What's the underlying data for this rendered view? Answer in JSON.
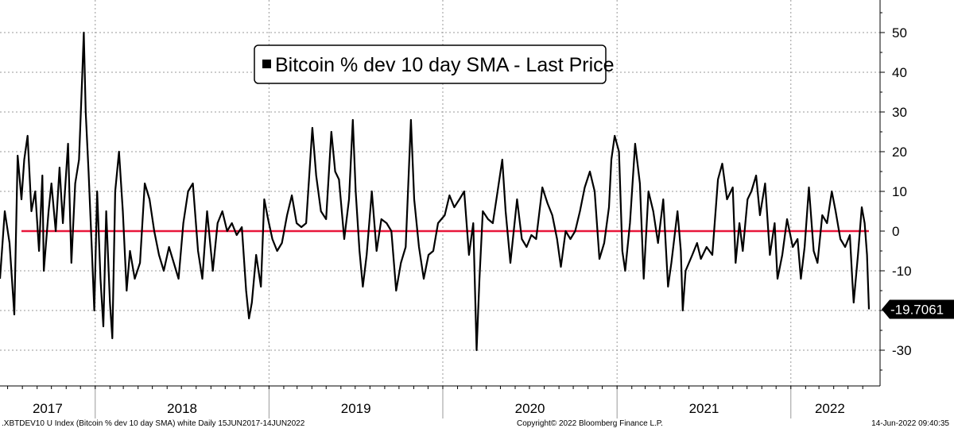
{
  "chart_data": {
    "type": "line",
    "title": "",
    "xlabel": "",
    "ylabel": "",
    "x_range": [
      "2017-06-15",
      "2022-06-14"
    ],
    "ylim": [
      -40,
      55
    ],
    "yticks": [
      50,
      40,
      30,
      20,
      10,
      0,
      -10,
      -20,
      -30
    ],
    "ytick_labels": [
      "50",
      "40",
      "30",
      "20",
      "10",
      "0",
      "-10",
      "",
      "-30"
    ],
    "xtick_labels": [
      "2017",
      "2018",
      "2019",
      "2020",
      "2021",
      "2022"
    ],
    "legend": {
      "entries": [
        "Bitcoin % dev 10 day SMA - Last Price"
      ],
      "placement": "top-center"
    },
    "last_value_label": "-19.7061",
    "reference_line": {
      "y": 0,
      "color": "#e8173a"
    },
    "grid": true,
    "series": [
      {
        "color": "#000000",
        "points": [
          [
            "2017-06-15",
            -12
          ],
          [
            "2017-06-25",
            5
          ],
          [
            "2017-07-05",
            -3
          ],
          [
            "2017-07-15",
            -21
          ],
          [
            "2017-07-22",
            19
          ],
          [
            "2017-07-30",
            8
          ],
          [
            "2017-08-05",
            18
          ],
          [
            "2017-08-12",
            24
          ],
          [
            "2017-08-20",
            5
          ],
          [
            "2017-08-28",
            10
          ],
          [
            "2017-09-05",
            -5
          ],
          [
            "2017-09-12",
            14
          ],
          [
            "2017-09-15",
            -10
          ],
          [
            "2017-09-25",
            5
          ],
          [
            "2017-10-01",
            12
          ],
          [
            "2017-10-10",
            0
          ],
          [
            "2017-10-18",
            16
          ],
          [
            "2017-10-25",
            2
          ],
          [
            "2017-11-05",
            22
          ],
          [
            "2017-11-12",
            -8
          ],
          [
            "2017-11-20",
            12
          ],
          [
            "2017-11-28",
            18
          ],
          [
            "2017-12-05",
            40
          ],
          [
            "2017-12-08",
            50
          ],
          [
            "2017-12-12",
            30
          ],
          [
            "2017-12-18",
            15
          ],
          [
            "2017-12-25",
            -5
          ],
          [
            "2017-12-30",
            -20
          ],
          [
            "2018-01-05",
            10
          ],
          [
            "2018-01-12",
            -12
          ],
          [
            "2018-01-18",
            -24
          ],
          [
            "2018-01-24",
            5
          ],
          [
            "2018-02-01",
            -18
          ],
          [
            "2018-02-06",
            -27
          ],
          [
            "2018-02-12",
            10
          ],
          [
            "2018-02-20",
            20
          ],
          [
            "2018-02-28",
            5
          ],
          [
            "2018-03-08",
            -15
          ],
          [
            "2018-03-15",
            -5
          ],
          [
            "2018-03-25",
            -12
          ],
          [
            "2018-04-05",
            -8
          ],
          [
            "2018-04-15",
            12
          ],
          [
            "2018-04-25",
            8
          ],
          [
            "2018-05-05",
            0
          ],
          [
            "2018-05-15",
            -6
          ],
          [
            "2018-05-25",
            -10
          ],
          [
            "2018-06-05",
            -4
          ],
          [
            "2018-06-15",
            -8
          ],
          [
            "2018-06-25",
            -12
          ],
          [
            "2018-07-05",
            2
          ],
          [
            "2018-07-15",
            10
          ],
          [
            "2018-07-25",
            12
          ],
          [
            "2018-08-05",
            -5
          ],
          [
            "2018-08-14",
            -12
          ],
          [
            "2018-08-24",
            5
          ],
          [
            "2018-09-05",
            -10
          ],
          [
            "2018-09-15",
            2
          ],
          [
            "2018-09-25",
            5
          ],
          [
            "2018-10-05",
            0
          ],
          [
            "2018-10-15",
            2
          ],
          [
            "2018-10-25",
            -1
          ],
          [
            "2018-11-05",
            1
          ],
          [
            "2018-11-14",
            -15
          ],
          [
            "2018-11-20",
            -22
          ],
          [
            "2018-11-26",
            -18
          ],
          [
            "2018-12-05",
            -6
          ],
          [
            "2018-12-15",
            -14
          ],
          [
            "2018-12-22",
            8
          ],
          [
            "2018-12-30",
            3
          ],
          [
            "2019-01-08",
            -2
          ],
          [
            "2019-01-18",
            -5
          ],
          [
            "2019-01-28",
            -3
          ],
          [
            "2019-02-08",
            4
          ],
          [
            "2019-02-18",
            9
          ],
          [
            "2019-02-28",
            2
          ],
          [
            "2019-03-10",
            1
          ],
          [
            "2019-03-20",
            2
          ],
          [
            "2019-04-02",
            26
          ],
          [
            "2019-04-10",
            14
          ],
          [
            "2019-04-20",
            5
          ],
          [
            "2019-05-01",
            3
          ],
          [
            "2019-05-12",
            25
          ],
          [
            "2019-05-20",
            15
          ],
          [
            "2019-05-28",
            13
          ],
          [
            "2019-06-08",
            -2
          ],
          [
            "2019-06-18",
            8
          ],
          [
            "2019-06-26",
            28
          ],
          [
            "2019-07-02",
            10
          ],
          [
            "2019-07-10",
            -5
          ],
          [
            "2019-07-17",
            -14
          ],
          [
            "2019-07-25",
            -6
          ],
          [
            "2019-08-05",
            10
          ],
          [
            "2019-08-15",
            -5
          ],
          [
            "2019-08-25",
            3
          ],
          [
            "2019-09-05",
            2
          ],
          [
            "2019-09-15",
            0
          ],
          [
            "2019-09-25",
            -15
          ],
          [
            "2019-10-05",
            -8
          ],
          [
            "2019-10-15",
            -4
          ],
          [
            "2019-10-26",
            28
          ],
          [
            "2019-11-02",
            8
          ],
          [
            "2019-11-12",
            -4
          ],
          [
            "2019-11-22",
            -12
          ],
          [
            "2019-12-02",
            -6
          ],
          [
            "2019-12-12",
            -5
          ],
          [
            "2019-12-22",
            2
          ],
          [
            "2020-01-05",
            4
          ],
          [
            "2020-01-15",
            9
          ],
          [
            "2020-01-25",
            6
          ],
          [
            "2020-02-05",
            8
          ],
          [
            "2020-02-15",
            10
          ],
          [
            "2020-02-25",
            -6
          ],
          [
            "2020-03-05",
            2
          ],
          [
            "2020-03-12",
            -30
          ],
          [
            "2020-03-18",
            -12
          ],
          [
            "2020-03-25",
            5
          ],
          [
            "2020-04-05",
            3
          ],
          [
            "2020-04-15",
            2
          ],
          [
            "2020-04-25",
            10
          ],
          [
            "2020-05-05",
            18
          ],
          [
            "2020-05-12",
            5
          ],
          [
            "2020-05-22",
            -8
          ],
          [
            "2020-06-05",
            8
          ],
          [
            "2020-06-15",
            -2
          ],
          [
            "2020-06-25",
            -4
          ],
          [
            "2020-07-05",
            -1
          ],
          [
            "2020-07-15",
            -2
          ],
          [
            "2020-07-28",
            11
          ],
          [
            "2020-08-08",
            7
          ],
          [
            "2020-08-18",
            4
          ],
          [
            "2020-08-28",
            -2
          ],
          [
            "2020-09-05",
            -9
          ],
          [
            "2020-09-15",
            0
          ],
          [
            "2020-09-25",
            -2
          ],
          [
            "2020-10-05",
            0
          ],
          [
            "2020-10-15",
            5
          ],
          [
            "2020-10-25",
            11
          ],
          [
            "2020-11-05",
            15
          ],
          [
            "2020-11-15",
            10
          ],
          [
            "2020-11-25",
            -7
          ],
          [
            "2020-12-05",
            -3
          ],
          [
            "2020-12-15",
            6
          ],
          [
            "2020-12-20",
            18
          ],
          [
            "2020-12-27",
            24
          ],
          [
            "2021-01-05",
            20
          ],
          [
            "2021-01-12",
            -5
          ],
          [
            "2021-01-18",
            -10
          ],
          [
            "2021-01-28",
            2
          ],
          [
            "2021-02-08",
            22
          ],
          [
            "2021-02-18",
            12
          ],
          [
            "2021-02-26",
            -12
          ],
          [
            "2021-03-08",
            10
          ],
          [
            "2021-03-18",
            5
          ],
          [
            "2021-03-28",
            -3
          ],
          [
            "2021-04-08",
            8
          ],
          [
            "2021-04-18",
            -14
          ],
          [
            "2021-04-25",
            -8
          ],
          [
            "2021-05-08",
            5
          ],
          [
            "2021-05-15",
            -5
          ],
          [
            "2021-05-19",
            -20
          ],
          [
            "2021-05-25",
            -10
          ],
          [
            "2021-06-08",
            -6
          ],
          [
            "2021-06-18",
            -3
          ],
          [
            "2021-06-26",
            -7
          ],
          [
            "2021-07-08",
            -4
          ],
          [
            "2021-07-20",
            -6
          ],
          [
            "2021-08-01",
            13
          ],
          [
            "2021-08-10",
            17
          ],
          [
            "2021-08-20",
            8
          ],
          [
            "2021-09-01",
            11
          ],
          [
            "2021-09-07",
            -8
          ],
          [
            "2021-09-15",
            2
          ],
          [
            "2021-09-22",
            -5
          ],
          [
            "2021-10-02",
            8
          ],
          [
            "2021-10-10",
            10
          ],
          [
            "2021-10-20",
            14
          ],
          [
            "2021-10-28",
            4
          ],
          [
            "2021-11-08",
            12
          ],
          [
            "2021-11-18",
            -6
          ],
          [
            "2021-11-28",
            2
          ],
          [
            "2021-12-04",
            -12
          ],
          [
            "2021-12-14",
            -6
          ],
          [
            "2021-12-24",
            3
          ],
          [
            "2022-01-05",
            -4
          ],
          [
            "2022-01-15",
            -2
          ],
          [
            "2022-01-22",
            -12
          ],
          [
            "2022-01-30",
            -4
          ],
          [
            "2022-02-08",
            11
          ],
          [
            "2022-02-18",
            -5
          ],
          [
            "2022-02-26",
            -8
          ],
          [
            "2022-03-08",
            4
          ],
          [
            "2022-03-18",
            2
          ],
          [
            "2022-03-28",
            10
          ],
          [
            "2022-04-05",
            5
          ],
          [
            "2022-04-15",
            -2
          ],
          [
            "2022-04-25",
            -4
          ],
          [
            "2022-05-05",
            -1
          ],
          [
            "2022-05-10",
            -12
          ],
          [
            "2022-05-13",
            -18
          ],
          [
            "2022-05-22",
            -6
          ],
          [
            "2022-05-30",
            6
          ],
          [
            "2022-06-05",
            2
          ],
          [
            "2022-06-10",
            -6
          ],
          [
            "2022-06-14",
            -19.7061
          ]
        ]
      }
    ]
  },
  "footer": {
    "left": ".XBTDEV10 U Index (Bitcoin % dev 10 day SMA) white  Daily 15JUN2017-14JUN2022",
    "center": "Copyright© 2022 Bloomberg Finance L.P.",
    "right": "14-Jun-2022 09:40:35"
  },
  "colors": {
    "series": "#000000",
    "zero_line": "#e8173a",
    "grid": "#9a9a9a",
    "legend_bg": "#ffffff"
  }
}
